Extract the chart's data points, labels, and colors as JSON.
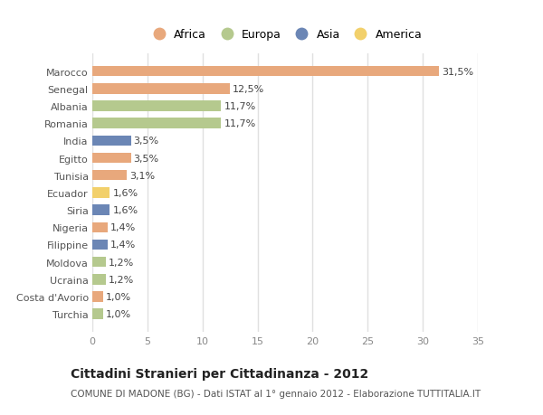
{
  "countries": [
    "Marocco",
    "Senegal",
    "Albania",
    "Romania",
    "India",
    "Egitto",
    "Tunisia",
    "Ecuador",
    "Siria",
    "Nigeria",
    "Filippine",
    "Moldova",
    "Ucraina",
    "Costa d'Avorio",
    "Turchia"
  ],
  "values": [
    31.5,
    12.5,
    11.7,
    11.7,
    3.5,
    3.5,
    3.1,
    1.6,
    1.6,
    1.4,
    1.4,
    1.2,
    1.2,
    1.0,
    1.0
  ],
  "labels": [
    "31,5%",
    "12,5%",
    "11,7%",
    "11,7%",
    "3,5%",
    "3,5%",
    "3,1%",
    "1,6%",
    "1,6%",
    "1,4%",
    "1,4%",
    "1,2%",
    "1,2%",
    "1,0%",
    "1,0%"
  ],
  "continents": [
    "Africa",
    "Africa",
    "Europa",
    "Europa",
    "Asia",
    "Africa",
    "Africa",
    "America",
    "Asia",
    "Africa",
    "Asia",
    "Europa",
    "Europa",
    "Africa",
    "Europa"
  ],
  "continent_colors": {
    "Africa": "#E8A87C",
    "Europa": "#B5C98E",
    "Asia": "#6B86B5",
    "America": "#F2D06B"
  },
  "legend_order": [
    "Africa",
    "Europa",
    "Asia",
    "America"
  ],
  "title": "Cittadini Stranieri per Cittadinanza - 2012",
  "subtitle": "COMUNE DI MADONE (BG) - Dati ISTAT al 1° gennaio 2012 - Elaborazione TUTTITALIA.IT",
  "xlim": [
    0,
    35
  ],
  "xticks": [
    0,
    5,
    10,
    15,
    20,
    25,
    30,
    35
  ],
  "background_color": "#ffffff",
  "plot_bg_color": "#ffffff",
  "grid_color": "#e0e0e0",
  "bar_alpha": 1.0,
  "bar_height": 0.6,
  "label_fontsize": 8,
  "ytick_fontsize": 8,
  "xtick_fontsize": 8,
  "legend_fontsize": 9,
  "title_fontsize": 10,
  "subtitle_fontsize": 7.5
}
